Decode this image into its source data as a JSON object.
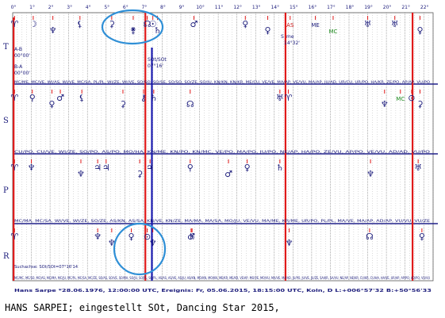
{
  "degree_ticks": [
    "0°",
    "1°",
    "2°",
    "3°",
    "4°",
    "5°",
    "6°",
    "7°",
    "8°",
    "9°",
    "10°",
    "11°",
    "12°",
    "13°",
    "14°",
    "15°",
    "16°",
    "17°",
    "18°",
    "19°",
    "20°",
    "21°",
    "22°"
  ],
  "rows": [
    {
      "label": "T",
      "glyphs": [
        {
          "deg": 0.1,
          "text": "♈",
          "color": "#1a1a7a"
        },
        {
          "deg": 1.1,
          "text": "☽",
          "color": "#1a1a7a"
        },
        {
          "deg": 2.15,
          "text": "♆",
          "color": "#1a1a7a"
        },
        {
          "deg": 3.6,
          "text": "⚸",
          "color": "#1a1a7a"
        },
        {
          "deg": 5.3,
          "text": "⚳",
          "color": "#1a1a7a"
        },
        {
          "deg": 6.45,
          "text": "⚵",
          "color": "#1a1a7a"
        },
        {
          "deg": 7.2,
          "text": "☊",
          "color": "#1a1a7a"
        },
        {
          "deg": 7.5,
          "text": "☉",
          "color": "#1a1a7a"
        },
        {
          "deg": 7.75,
          "text": "♄",
          "color": "#1a1a7a"
        },
        {
          "deg": 9.7,
          "text": "♂",
          "color": "#1a1a7a"
        },
        {
          "deg": 12.45,
          "text": "♀",
          "color": "#1a1a7a"
        },
        {
          "deg": 13.65,
          "text": "♀",
          "color": "#1a1a7a"
        },
        {
          "deg": 14.85,
          "text": "AS",
          "color": "#cc1111"
        },
        {
          "deg": 16.2,
          "text": "ME",
          "color": "#1a1a7a"
        },
        {
          "deg": 17.15,
          "text": "MC",
          "color": "#1e8a1e"
        },
        {
          "deg": 19.0,
          "text": "♅",
          "color": "#1a1a7a"
        },
        {
          "deg": 20.45,
          "text": "♅",
          "color": "#1a1a7a"
        },
        {
          "deg": 21.8,
          "text": "♀",
          "color": "#1a1a7a"
        }
      ],
      "notes": [
        "A-B",
        "00°00'",
        "B-A",
        "00°00'",
        "SOt/SOt",
        "07°16'",
        "S",
        "me",
        "14°32'"
      ],
      "aspects": "MC/ME, MC/VE, WI/AS, WI/VE, MC/SA, PL/PL, WI/ZE, WI/VE, SO/SO, SO/SE, SO/SO, SO/ZE, SO/JU, KN/KN, KN/KR, ME/CU, VE/VE, MA/AP, VE/VU, MA/AP, JU/AD, UR/CU, UR/PO, HA/KR, ZE/PO, AP/AP, VU/PO"
    },
    {
      "label": "S",
      "glyphs": [
        {
          "deg": 0.1,
          "text": "♈",
          "color": "#1a1a7a"
        },
        {
          "deg": 1.05,
          "text": "⚲",
          "color": "#1a1a7a"
        },
        {
          "deg": 2.1,
          "text": "♀",
          "color": "#1a1a7a"
        },
        {
          "deg": 2.55,
          "text": "♂",
          "color": "#1a1a7a"
        },
        {
          "deg": 3.7,
          "text": "⚸",
          "color": "#1a1a7a"
        },
        {
          "deg": 5.9,
          "text": "⚳",
          "color": "#1a1a7a"
        },
        {
          "deg": 7.0,
          "text": "⚷",
          "color": "#1a1a7a"
        },
        {
          "deg": 7.55,
          "text": "♄",
          "color": "#1a1a7a"
        },
        {
          "deg": 9.5,
          "text": "☊",
          "color": "#1a1a7a"
        },
        {
          "deg": 14.3,
          "text": "♅",
          "color": "#1a1a7a"
        },
        {
          "deg": 14.75,
          "text": "♈",
          "color": "#1a1a7a"
        },
        {
          "deg": 19.9,
          "text": "♆",
          "color": "#1a1a7a"
        },
        {
          "deg": 20.75,
          "text": "MC",
          "color": "#1e8a1e"
        },
        {
          "deg": 21.35,
          "text": "⊙",
          "color": "#1a1a7a"
        },
        {
          "deg": 21.8,
          "text": "⚳",
          "color": "#1a1a7a"
        }
      ],
      "aspects": "CU/PO, CU/VE, WI/ZE, SO/PO, AS/PO, MO/HA, KN/ME, KN/PO, KN/MC, VE/PO, MA/PO, JU/PO, NE/AP, HA/PO, ZE/VU, AP/PO, VE/VU, AD/AD, VU/PO"
    },
    {
      "label": "P",
      "glyphs": [
        {
          "deg": 0.1,
          "text": "♈",
          "color": "#1a1a7a"
        },
        {
          "deg": 1.0,
          "text": "♆",
          "color": "#1a1a7a"
        },
        {
          "deg": 3.65,
          "text": "♆",
          "color": "#1a1a7a"
        },
        {
          "deg": 4.55,
          "text": "♃",
          "color": "#1a1a7a"
        },
        {
          "deg": 5.0,
          "text": "♃",
          "color": "#1a1a7a"
        },
        {
          "deg": 6.8,
          "text": "⚳",
          "color": "#1a1a7a"
        },
        {
          "deg": 7.35,
          "text": "♃",
          "color": "#1a1a7a"
        },
        {
          "deg": 9.5,
          "text": "⚲",
          "color": "#1a1a7a"
        },
        {
          "deg": 11.55,
          "text": "♂",
          "color": "#1a1a7a"
        },
        {
          "deg": 12.55,
          "text": "♀",
          "color": "#1a1a7a"
        },
        {
          "deg": 14.3,
          "text": "♄",
          "color": "#1a1a7a"
        },
        {
          "deg": 19.15,
          "text": "♆",
          "color": "#1a1a7a"
        },
        {
          "deg": 21.7,
          "text": "♅",
          "color": "#1a1a7a"
        }
      ],
      "aspects": "MC/MA, MC/SA, WI/VE, WI/ZE, SO/ZE, AS/KN, AS/SA, KN/VE, KN/ZE, MA/MA, MA/SA, MO/JU, VE/VU, MA/ME, KR/ME, UR/PO, PL/PL, MA/VE, MA/AP, AD/AP, VU/VU, VU/ZE"
    },
    {
      "label": "R",
      "glyphs": [
        {
          "deg": 0.1,
          "text": "♈",
          "color": "#1a1a7a"
        },
        {
          "deg": 4.55,
          "text": "♆",
          "color": "#1a1a7a"
        },
        {
          "deg": 5.3,
          "text": "♆",
          "color": "#1a1a7a"
        },
        {
          "deg": 6.35,
          "text": "♀",
          "color": "#1a1a7a"
        },
        {
          "deg": 7.2,
          "text": "⊙",
          "color": "#1a1a7a"
        },
        {
          "deg": 7.5,
          "text": "♆",
          "color": "#1a1a7a"
        },
        {
          "deg": 9.55,
          "text": "♂",
          "color": "#1a1a7a"
        },
        {
          "deg": 9.6,
          "text": "♄",
          "color": "#1a1a7a"
        },
        {
          "deg": 14.8,
          "text": "♆",
          "color": "#1a1a7a"
        },
        {
          "deg": 19.1,
          "text": "☊",
          "color": "#1a1a7a"
        },
        {
          "deg": 21.9,
          "text": "♀",
          "color": "#1a1a7a"
        }
      ],
      "aspects": "MC/MC, MC/SO, MC/AS, MC/MA, MC/JU, MC/PL, MC/SA, MC/ZE, SO/AS, SO/VE, SO/MA, SO/JU, SO/PL, SO/PL, AS/AS, AS/VE, AS/JU, AS/KN, MO/KN, MO/KN, ME/KR, ME/KR, VE/AP, MO/VE, MO/VU, MA/VE, MA/AD, JU/PO, JU/VE, JU/ZE, SA/KR, SA/VU, NE/AP, NE/KR, CU/KR, CU/HA, HA/VE, UR/AP, AP/PO, AD/PO, VU/VU"
    }
  ],
  "search_axis_label": "Suchachse: SOt/SOt=07°16'14",
  "subject_line": "Hans Sarpe   *28.06.1976, 12:00:00 UTC, Ereignis: Fr, 05.06.2015, 18:15:00 UTC, Koln, D     L:+006°57'32 B:+50°56'33",
  "caption": "HANS SARPEI; eingestellt SOt, Dancing Star 2015,",
  "colors": {
    "red_line": "#e01b1b",
    "blue_line": "#1b1bb0",
    "separator": "#20208a",
    "grid": "#9a9a9a",
    "circle": "#2f8fd6"
  }
}
